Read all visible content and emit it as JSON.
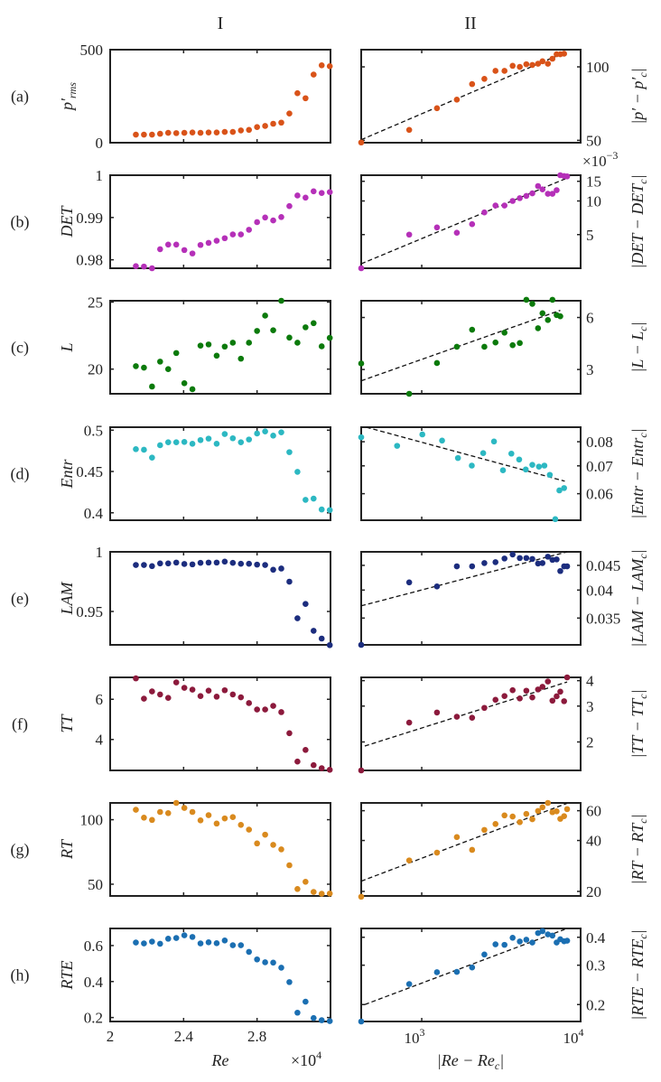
{
  "column_titles": [
    "I",
    "II"
  ],
  "bottom": {
    "left_xlabel": "Re",
    "left_multiplier": {
      "base": "×10",
      "exp": "4"
    },
    "right_xlabel": {
      "text": "|Re − Re",
      "sub": "c",
      "tail": "|"
    }
  },
  "chart_data": {
    "type": "scatter",
    "left": {
      "x": [
        2.14,
        2.184,
        2.228,
        2.272,
        2.316,
        2.36,
        2.404,
        2.448,
        2.492,
        2.536,
        2.58,
        2.624,
        2.668,
        2.712,
        2.756,
        2.8,
        2.844,
        2.888,
        2.932,
        2.976,
        3.02,
        3.064,
        3.108,
        3.152,
        3.196
      ],
      "xlim": [
        2,
        3.2
      ],
      "xticks": [
        2,
        2.4,
        2.8
      ],
      "xscale": "linear",
      "xlabel": "Re",
      "x_multiplier": "×10^4"
    },
    "right": {
      "xlim": [
        416,
        10000
      ],
      "xticks": [
        {
          "value": 1000,
          "base": "10",
          "exp": "3"
        },
        {
          "value": 10000,
          "base": "10",
          "exp": "4"
        }
      ],
      "xscale": "log",
      "xlabel": "|Re − Re_c|",
      "fit_line_style": "dashed"
    },
    "rows": [
      {
        "label": "(a)",
        "color": "#d95319",
        "left": {
          "ylabel": {
            "text": "p′",
            "sub": "rms"
          },
          "ylim": [
            0,
            500
          ],
          "yticks": [
            0,
            500
          ],
          "y": [
            43.5,
            43.5,
            43.5,
            48,
            53,
            51.6,
            53,
            55,
            53,
            55,
            55,
            58,
            58,
            66,
            69,
            84,
            90,
            102,
            108,
            157,
            266,
            239,
            366,
            416,
            411
          ]
        },
        "right": {
          "ylabel": {
            "text": "|p′ − p′",
            "sub": "c",
            "tail": "|"
          },
          "yscale": "log",
          "ylim": [
            48.9,
            117.6
          ],
          "yticks": [
            50,
            100
          ],
          "x": [
            416,
            834,
            1247,
            1663,
            2075,
            2479,
            2912,
            3318,
            3733,
            4141,
            4553,
            4966,
            5394,
            5754,
            6223,
            6647,
            7063,
            7447,
            7870
          ],
          "y": [
            49,
            55.2,
            67.7,
            73.4,
            85,
            89.3,
            96.3,
            96.3,
            101,
            100,
            102.5,
            101.8,
            103,
            105.4,
            103,
            108,
            112.6,
            112.6,
            113.2
          ],
          "fit": [
            [
              416,
              50.3
            ],
            [
              7870,
              114.2
            ]
          ]
        }
      },
      {
        "label": "(b)",
        "color": "#b530b8",
        "left": {
          "ylabel": {
            "text": "DET"
          },
          "ylim": [
            0.978,
            1.0
          ],
          "yticks": [
            0.98,
            0.99,
            1
          ],
          "y": [
            0.9785,
            0.9784,
            0.978,
            0.9825,
            0.9836,
            0.9836,
            0.9823,
            0.9815,
            0.9835,
            0.984,
            0.9845,
            0.9851,
            0.986,
            0.986,
            0.9871,
            0.9889,
            0.99,
            0.9893,
            0.9901,
            0.9927,
            0.9952,
            0.9947,
            0.9962,
            0.9958,
            0.996
          ]
        },
        "right": {
          "ylabel": {
            "text": "|DET − DET",
            "sub": "c",
            "tail": "|"
          },
          "yscale": "log",
          "multiplier": {
            "base": "×10",
            "exp": "−3"
          },
          "ylim": [
            2.5,
            17
          ],
          "yticks": [
            5,
            10,
            15
          ],
          "x": [
            416,
            834,
            1247,
            1663,
            2075,
            2479,
            2912,
            3318,
            3733,
            4141,
            4553,
            4966,
            5394,
            5754,
            6223,
            6647,
            7063,
            7447,
            7870,
            8222
          ],
          "y": [
            2.5,
            5,
            5.8,
            5.2,
            6.2,
            7.9,
            9.1,
            9.1,
            10,
            10.6,
            11.1,
            11.7,
            13.6,
            12.7,
            11.6,
            11.6,
            12.5,
            17,
            16.7,
            16.6
          ],
          "fit": [
            [
              416,
              2.74
            ],
            [
              8400,
              16.25
            ]
          ]
        }
      },
      {
        "label": "(c)",
        "color": "#0b7a0b",
        "left": {
          "ylabel": {
            "text": "L"
          },
          "ylim": [
            18.16,
            25.1
          ],
          "yticks": [
            20,
            25
          ],
          "y": [
            20.22,
            20.11,
            18.7,
            20.56,
            20,
            21.2,
            18.95,
            18.5,
            21.75,
            21.84,
            21.0,
            21.68,
            21.97,
            20.78,
            21.97,
            22.85,
            23.99,
            22.9,
            25.1,
            22.35,
            21.97,
            23.12,
            23.43,
            21.7,
            22.33
          ]
        },
        "right": {
          "ylabel": {
            "text": "|L − L",
            "sub": "c",
            "tail": "|"
          },
          "yscale": "log",
          "ylim": [
            2.17,
            7.5
          ],
          "yticks": [
            3,
            6
          ],
          "x": [
            416,
            834,
            1247,
            1663,
            2075,
            2479,
            2912,
            3318,
            3733,
            4141,
            4553,
            4966,
            5394,
            5754,
            6223,
            6647,
            7063,
            7447
          ],
          "y": [
            3.25,
            2.17,
            3.27,
            4.06,
            5.1,
            4.06,
            4.3,
            4.9,
            4.15,
            4.27,
            7.6,
            7.2,
            5.2,
            6.35,
            5.8,
            7.6,
            6.2,
            6.1
          ],
          "fit": [
            [
              416,
              2.58
            ],
            [
              7447,
              6.6
            ]
          ]
        }
      },
      {
        "label": "(d)",
        "color": "#2cb8c2",
        "left": {
          "ylabel": {
            "text": "Entr"
          },
          "ylim": [
            0.391,
            0.5036
          ],
          "yticks": [
            0.4,
            0.45,
            0.5
          ],
          "y": [
            0.477,
            0.4763,
            0.4668,
            0.4818,
            0.4854,
            0.4854,
            0.4858,
            0.4836,
            0.488,
            0.4898,
            0.4836,
            0.4953,
            0.4902,
            0.4854,
            0.4887,
            0.496,
            0.4985,
            0.4934,
            0.4974,
            0.4734,
            0.4496,
            0.4157,
            0.4172,
            0.404,
            0.4033
          ]
        },
        "right": {
          "ylabel": {
            "text": "|Entr − Entr",
            "sub": "c",
            "tail": "|"
          },
          "yscale": "log",
          "ylim": [
            0.0518,
            0.0867
          ],
          "yticks": [
            0.06,
            0.07,
            0.08
          ],
          "x": [
            416,
            700,
            1009,
            1343,
            1690,
            2066,
            2437,
            2850,
            3245,
            3665,
            4104,
            4515,
            4966,
            5467,
            5916,
            6397,
            6925,
            7348,
            7870
          ],
          "y": [
            0.082,
            0.0782,
            0.0833,
            0.0805,
            0.0731,
            0.0701,
            0.0751,
            0.0801,
            0.0683,
            0.0749,
            0.0725,
            0.0686,
            0.0704,
            0.0697,
            0.0701,
            0.0666,
            0.0521,
            0.0611,
            0.0619
          ],
          "fit": [
            [
              448,
              0.0867
            ],
            [
              7943,
              0.0643
            ]
          ]
        }
      },
      {
        "label": "(e)",
        "color": "#1c2d7e",
        "left": {
          "ylabel": {
            "text": "LAM"
          },
          "ylim": [
            0.922,
            1.0
          ],
          "yticks": [
            0.95,
            1
          ],
          "y": [
            0.989,
            0.989,
            0.988,
            0.9903,
            0.9903,
            0.991,
            0.9898,
            0.9895,
            0.9908,
            0.991,
            0.991,
            0.9918,
            0.9908,
            0.99,
            0.99,
            0.9893,
            0.989,
            0.985,
            0.986,
            0.975,
            0.9443,
            0.9563,
            0.9338,
            0.9273,
            0.9218
          ]
        },
        "right": {
          "ylabel": {
            "text": "|LAM − LAM",
            "sub": "c",
            "tail": "|"
          },
          "yscale": "log",
          "ylim": [
            0.0308,
            0.048
          ],
          "yticks": [
            0.035,
            0.04,
            0.045
          ],
          "x": [
            416,
            834,
            1247,
            1663,
            2075,
            2479,
            2912,
            3318,
            3733,
            4141,
            4553,
            4966,
            5394,
            5754,
            6223,
            6647,
            7063,
            7447,
            7870,
            8222
          ],
          "y": [
            0.0308,
            0.0415,
            0.0407,
            0.0448,
            0.0448,
            0.0455,
            0.0457,
            0.0465,
            0.0474,
            0.0466,
            0.0466,
            0.0464,
            0.0454,
            0.0455,
            0.0469,
            0.0462,
            0.0463,
            0.0438,
            0.0448,
            0.0448
          ],
          "fit": [
            [
              416,
              0.0371
            ],
            [
              8222,
              0.048
            ]
          ]
        }
      },
      {
        "label": "(f)",
        "color": "#8c1a3c",
        "left": {
          "ylabel": {
            "text": "TT"
          },
          "ylim": [
            2.46,
            7.09
          ],
          "yticks": [
            4,
            6
          ],
          "y": [
            7.04,
            6.03,
            6.39,
            6.24,
            6.07,
            6.84,
            6.57,
            6.48,
            6.16,
            6.43,
            6.13,
            6.45,
            6.24,
            6.1,
            5.81,
            5.49,
            5.49,
            5.67,
            5.36,
            4.31,
            2.9,
            3.48,
            2.72,
            2.57,
            2.49
          ]
        },
        "right": {
          "ylabel": {
            "text": "|TT − TT",
            "sub": "c",
            "tail": "|"
          },
          "yscale": "log",
          "ylim": [
            1.45,
            4.15
          ],
          "yticks": [
            2,
            3,
            4
          ],
          "x": [
            416,
            834,
            1247,
            1663,
            2075,
            2479,
            2912,
            3318,
            3733,
            4141,
            4553,
            4966,
            5394,
            5754,
            6223,
            6647,
            7063,
            7447,
            7870,
            8222
          ],
          "y": [
            1.45,
            2.49,
            2.79,
            2.66,
            2.63,
            2.94,
            3.22,
            3.36,
            3.59,
            3.27,
            3.57,
            3.31,
            3.62,
            3.73,
            3.96,
            3.19,
            3.35,
            3.53,
            3.17,
            4.15
          ],
          "fit": [
            [
              438,
              1.91
            ],
            [
              8222,
              3.94
            ]
          ]
        }
      },
      {
        "label": "(g)",
        "color": "#d98a1e",
        "left": {
          "ylabel": {
            "text": "RT"
          },
          "ylim": [
            40.9,
            113
          ],
          "yticks": [
            50,
            100
          ],
          "y": [
            107.7,
            101.6,
            99.8,
            106,
            105.1,
            113,
            109.1,
            106,
            99.5,
            103.5,
            97,
            101,
            102,
            96,
            92.3,
            81.6,
            88.4,
            80.5,
            77,
            64.7,
            46.3,
            51.9,
            44,
            42.6,
            42.8
          ]
        },
        "right": {
          "ylabel": {
            "text": "|RT − RT",
            "sub": "c",
            "tail": "|"
          },
          "yscale": "log",
          "ylim": [
            18.8,
            66.7
          ],
          "yticks": [
            20,
            40,
            60
          ],
          "x": [
            416,
            834,
            1247,
            1663,
            2075,
            2479,
            2912,
            3318,
            3733,
            4141,
            4553,
            4966,
            5394,
            5754,
            6223,
            6647,
            7063,
            7447,
            7870,
            8222
          ],
          "y": [
            18.6,
            30.5,
            33.9,
            41.9,
            35.2,
            46.2,
            50.1,
            56.3,
            55.4,
            51.3,
            57.4,
            53.4,
            59.8,
            62.9,
            66.7,
            58.8,
            59.5,
            53.7,
            55.7,
            61.3
          ],
          "fit": [
            [
              416,
              23
            ],
            [
              8222,
              66.4
            ]
          ]
        }
      },
      {
        "label": "(h)",
        "color": "#1b6fb2",
        "left": {
          "ylabel": {
            "text": "RTE"
          },
          "ylim": [
            0.178,
            0.695
          ],
          "yticks": [
            0.2,
            0.4,
            0.6
          ],
          "y": [
            0.617,
            0.612,
            0.622,
            0.61,
            0.638,
            0.642,
            0.657,
            0.648,
            0.612,
            0.618,
            0.613,
            0.628,
            0.602,
            0.602,
            0.565,
            0.523,
            0.507,
            0.505,
            0.477,
            0.397,
            0.227,
            0.288,
            0.197,
            0.185,
            0.18
          ]
        },
        "right": {
          "ylabel": {
            "text": "|RTE − RTE",
            "sub": "c",
            "tail": "|"
          },
          "yscale": "log",
          "ylim": [
            0.168,
            0.438
          ],
          "yticks": [
            0.2,
            0.3,
            0.4
          ],
          "x": [
            416,
            834,
            1247,
            1663,
            2075,
            2479,
            2912,
            3318,
            3733,
            4141,
            4553,
            4966,
            5394,
            5754,
            6223,
            6647,
            7063,
            7447,
            7870,
            8222
          ],
          "y": [
            0.168,
            0.247,
            0.279,
            0.28,
            0.293,
            0.335,
            0.372,
            0.37,
            0.398,
            0.383,
            0.39,
            0.379,
            0.418,
            0.426,
            0.412,
            0.407,
            0.379,
            0.392,
            0.384,
            0.386
          ],
          "fit": [
            [
              438,
              0.2
            ],
            [
              7943,
              0.434
            ]
          ]
        }
      }
    ]
  }
}
